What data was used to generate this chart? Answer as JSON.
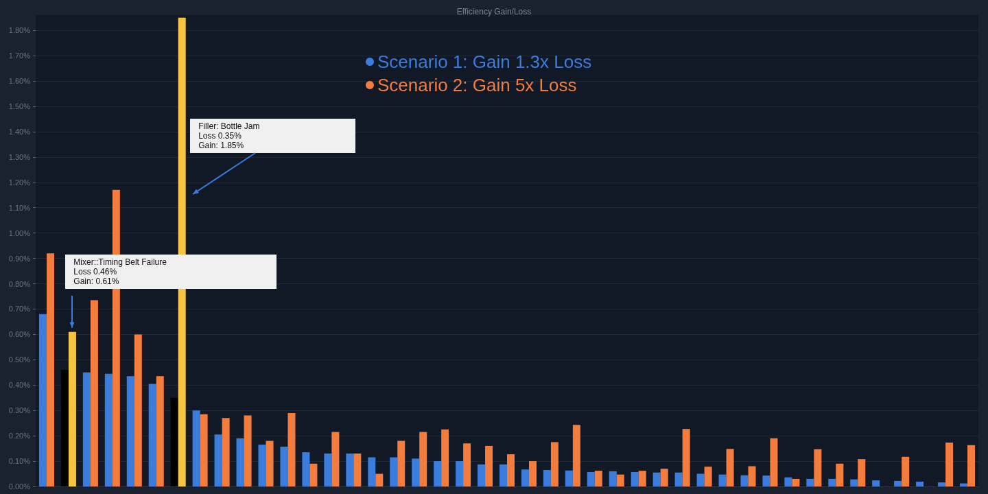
{
  "chart_data": {
    "type": "bar",
    "title": "Efficiency Gain/Loss",
    "categories": [
      null,
      null,
      null,
      null,
      null,
      null,
      null,
      null,
      null,
      null,
      null,
      null,
      null,
      null,
      null,
      null,
      null,
      null,
      null,
      null,
      null,
      null,
      null,
      null,
      null,
      null,
      null,
      null,
      null,
      null,
      null,
      null,
      null,
      null,
      null,
      null,
      null,
      null,
      null,
      null,
      null,
      null,
      null
    ],
    "series": [
      {
        "name": "Scenario 1: Gain 1.3x Loss",
        "color": "#3b7ddd",
        "values": [
          0.68,
          0.46,
          0.45,
          0.445,
          0.435,
          0.405,
          0.35,
          0.3,
          0.205,
          0.19,
          0.165,
          0.157,
          0.135,
          0.13,
          0.13,
          0.115,
          0.115,
          0.11,
          0.1,
          0.1,
          0.087,
          0.087,
          0.067,
          0.065,
          0.063,
          0.057,
          0.06,
          0.057,
          0.055,
          0.055,
          0.05,
          0.047,
          0.044,
          0.043,
          0.036,
          0.03,
          0.03,
          0.028,
          0.024,
          0.022,
          0.019,
          0.016,
          0.012
        ],
        "colors": [
          "#3b7ddd",
          "#000000",
          "#3b7ddd",
          "#3b7ddd",
          "#3b7ddd",
          "#3b7ddd",
          "#000000",
          "#3b7ddd",
          "#3b7ddd",
          "#3b7ddd",
          "#3b7ddd",
          "#3b7ddd",
          "#3b7ddd",
          "#3b7ddd",
          "#3b7ddd",
          "#3b7ddd",
          "#3b7ddd",
          "#3b7ddd",
          "#3b7ddd",
          "#3b7ddd",
          "#3b7ddd",
          "#3b7ddd",
          "#3b7ddd",
          "#3b7ddd",
          "#3b7ddd",
          "#3b7ddd",
          "#3b7ddd",
          "#3b7ddd",
          "#3b7ddd",
          "#3b7ddd",
          "#3b7ddd",
          "#3b7ddd",
          "#3b7ddd",
          "#3b7ddd",
          "#3b7ddd",
          "#3b7ddd",
          "#3b7ddd",
          "#3b7ddd",
          "#3b7ddd",
          "#3b7ddd",
          "#3b7ddd",
          "#3b7ddd",
          "#3b7ddd"
        ]
      },
      {
        "name": "Scenario 2: Gain 5x Loss",
        "color": "#f47c3c",
        "values": [
          0.92,
          0.61,
          0.735,
          1.17,
          0.6,
          0.435,
          1.85,
          0.285,
          0.27,
          0.28,
          0.18,
          0.29,
          0.09,
          0.215,
          0.13,
          0.05,
          0.18,
          0.215,
          0.225,
          0.17,
          0.16,
          0.127,
          0.1,
          0.175,
          0.243,
          0.062,
          0.047,
          0.062,
          0.07,
          0.227,
          0.078,
          0.148,
          0.08,
          0.19,
          0.03,
          0.147,
          0.09,
          0.108,
          0,
          0.117,
          0,
          0.173,
          0.163
        ],
        "colors": [
          "#f47c3c",
          "#f5c542",
          "#f47c3c",
          "#f47c3c",
          "#f47c3c",
          "#f47c3c",
          "#f5c542",
          "#f47c3c",
          "#f47c3c",
          "#f47c3c",
          "#f47c3c",
          "#f47c3c",
          "#f47c3c",
          "#f47c3c",
          "#f47c3c",
          "#f47c3c",
          "#f47c3c",
          "#f47c3c",
          "#f47c3c",
          "#f47c3c",
          "#f47c3c",
          "#f47c3c",
          "#f47c3c",
          "#f47c3c",
          "#f47c3c",
          "#f47c3c",
          "#f47c3c",
          "#f47c3c",
          "#f47c3c",
          "#f47c3c",
          "#f47c3c",
          "#f47c3c",
          "#f47c3c",
          "#f47c3c",
          "#f47c3c",
          "#f47c3c",
          "#f47c3c",
          "#f47c3c",
          "#f47c3c",
          "#f47c3c",
          "#f47c3c",
          "#f47c3c",
          "#f47c3c"
        ]
      }
    ],
    "ylim": [
      0,
      1.86
    ],
    "yticks": [
      {
        "value": 0,
        "label": "0.00%"
      },
      {
        "value": 0.1,
        "label": "0.10%"
      },
      {
        "value": 0.2,
        "label": "0.20%"
      },
      {
        "value": 0.3,
        "label": "0.30%"
      },
      {
        "value": 0.4,
        "label": "0.40%"
      },
      {
        "value": 0.5,
        "label": "0.50%"
      },
      {
        "value": 0.6,
        "label": "0.60%"
      },
      {
        "value": 0.7,
        "label": "0.70%"
      },
      {
        "value": 0.8,
        "label": "0.80%"
      },
      {
        "value": 0.9,
        "label": "0.90%"
      },
      {
        "value": 1.0,
        "label": "1.00%"
      },
      {
        "value": 1.1,
        "label": "1.10%"
      },
      {
        "value": 1.2,
        "label": "1.20%"
      },
      {
        "value": 1.3,
        "label": "1.30%"
      },
      {
        "value": 1.4,
        "label": "1.40%"
      },
      {
        "value": 1.5,
        "label": "1.50%"
      },
      {
        "value": 1.6,
        "label": "1.60%"
      },
      {
        "value": 1.7,
        "label": "1.70%"
      },
      {
        "value": 1.8,
        "label": "1.80%"
      }
    ],
    "annotations": [
      "Mixer::Timing Belt Failure\nLoss 0.46%\nGain: 0.61%",
      "Filler: Bottle Jam\nLoss 0.35%\nGain: 1.85%"
    ],
    "grid": "y",
    "legend": "top"
  }
}
